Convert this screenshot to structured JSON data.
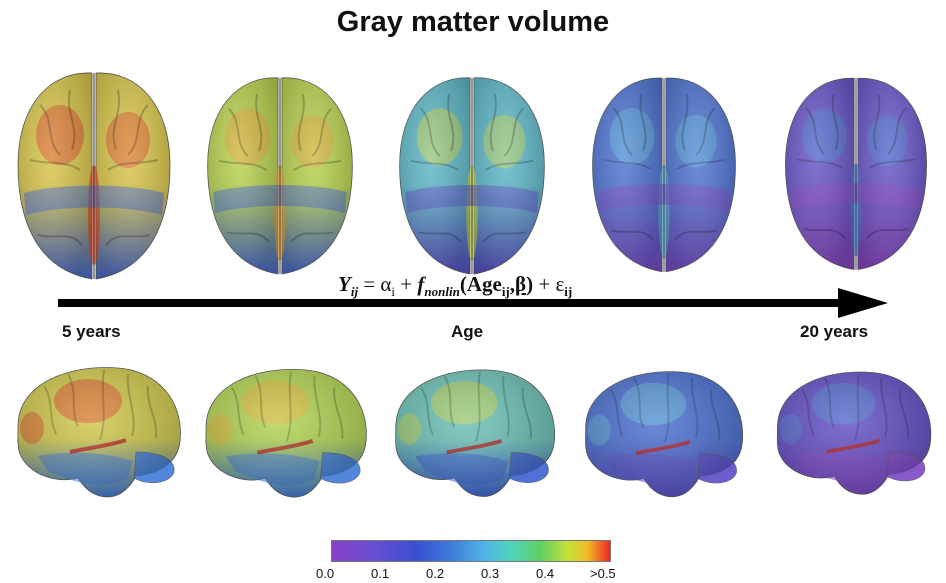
{
  "title": "Gray matter volume",
  "axis": {
    "start_label": "5 years",
    "middle_label": "Age",
    "end_label": "20 years"
  },
  "equation": {
    "y": "Y",
    "y_sub": "ij",
    "eq": " = ",
    "alpha": "α",
    "alpha_sub": "i",
    "plus1": " + ",
    "f": "f",
    "f_sub": "nonlin",
    "open": "(",
    "age": "Age",
    "age_sub": "ij",
    "comma": ",",
    "beta": "β",
    "close": ")",
    "plus2": " + ",
    "eps": "ε",
    "eps_sub": "ij"
  },
  "colorbar": {
    "ticks": [
      "0.0",
      "0.1",
      "0.2",
      "0.3",
      "0.4",
      ">0.5"
    ],
    "colors": [
      "#8b3fc6",
      "#3a4fcf",
      "#4fb4e6",
      "#5fcf62",
      "#f2b92a",
      "#ee2626"
    ]
  },
  "brains": {
    "top_view": [
      {
        "base": "#d8c64a",
        "patch": "#e04a2a",
        "lower": "#4a6bd0"
      },
      {
        "base": "#b8d24e",
        "patch": "#e8a238",
        "lower": "#4a6bd0"
      },
      {
        "base": "#5fb8c8",
        "patch": "#c8d648",
        "lower": "#5a52c8"
      },
      {
        "base": "#4f74d2",
        "patch": "#5cb0d8",
        "lower": "#7a4ec8"
      },
      {
        "base": "#6856c8",
        "patch": "#4c80d4",
        "lower": "#8a48c4"
      }
    ],
    "side_view": [
      {
        "base": "#cfc84c",
        "patch": "#e04a2a",
        "lower": "#3f7ad6"
      },
      {
        "base": "#b2d352",
        "patch": "#e8b238",
        "lower": "#3f7ad6"
      },
      {
        "base": "#6cc0b6",
        "patch": "#c8d648",
        "lower": "#3d62d0"
      },
      {
        "base": "#4b70d0",
        "patch": "#62b6d6",
        "lower": "#5a4ec8"
      },
      {
        "base": "#6450c6",
        "patch": "#4e84d2",
        "lower": "#7c48c4"
      }
    ]
  }
}
